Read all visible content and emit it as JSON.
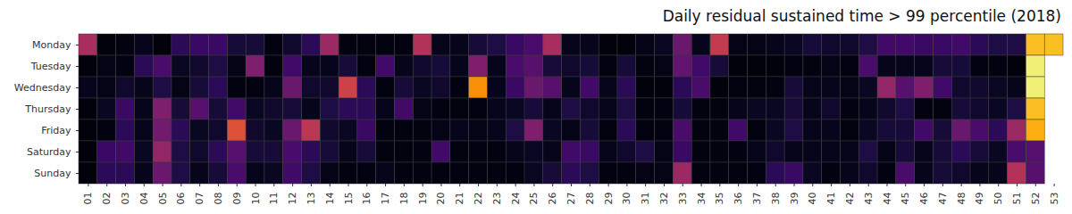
{
  "chart_data": {
    "type": "heatmap",
    "title": "Daily residual sustained time > 99 percentile (2018)",
    "x": [
      "01",
      "02",
      "03",
      "04",
      "05",
      "06",
      "07",
      "08",
      "09",
      "10",
      "11",
      "12",
      "13",
      "14",
      "15",
      "16",
      "17",
      "18",
      "19",
      "20",
      "21",
      "22",
      "23",
      "24",
      "25",
      "26",
      "27",
      "28",
      "29",
      "30",
      "31",
      "32",
      "33",
      "34",
      "35",
      "36",
      "37",
      "38",
      "39",
      "40",
      "41",
      "42",
      "43",
      "44",
      "45",
      "46",
      "47",
      "48",
      "49",
      "50",
      "51",
      "52",
      "53"
    ],
    "y": [
      "Monday",
      "Tuesday",
      "Wednesday",
      "Thursday",
      "Friday",
      "Saturday",
      "Sunday"
    ],
    "values": [
      [
        0.45,
        0.02,
        0.03,
        0.05,
        0.02,
        0.15,
        0.18,
        0.18,
        0.1,
        0.1,
        0.03,
        0.08,
        0.15,
        0.42,
        0.03,
        0.03,
        0.03,
        0.03,
        0.48,
        0.05,
        0.05,
        0.1,
        0.12,
        0.18,
        0.22,
        0.45,
        0.05,
        0.05,
        0.02,
        0.02,
        0.04,
        0.06,
        0.3,
        0.05,
        0.52,
        0.04,
        0.04,
        0.05,
        0.06,
        0.1,
        0.08,
        0.08,
        0.12,
        0.2,
        0.2,
        0.18,
        0.18,
        0.2,
        0.15,
        0.12,
        0.12,
        0.85,
        0.85
      ],
      [
        0.02,
        0.04,
        0.03,
        0.15,
        0.22,
        0.06,
        0.08,
        0.12,
        0.04,
        0.35,
        0.03,
        0.2,
        0.05,
        0.05,
        0.1,
        0.03,
        0.2,
        0.05,
        0.08,
        0.1,
        0.05,
        0.35,
        0.05,
        0.22,
        0.25,
        0.1,
        0.08,
        0.1,
        0.03,
        0.1,
        0.03,
        0.04,
        0.28,
        0.2,
        0.1,
        0.02,
        0.02,
        0.02,
        0.03,
        0.03,
        0.04,
        0.03,
        0.22,
        0.05,
        0.05,
        0.05,
        0.1,
        0.1,
        0.03,
        0.03,
        0.02,
        0.95,
        null
      ],
      [
        0.05,
        0.04,
        0.08,
        0.05,
        0.12,
        0.04,
        0.1,
        0.15,
        0.03,
        0.03,
        0.05,
        0.3,
        0.08,
        0.08,
        0.55,
        0.15,
        0.03,
        0.1,
        0.06,
        0.08,
        0.03,
        0.75,
        0.05,
        0.18,
        0.3,
        0.25,
        0.05,
        0.2,
        0.05,
        0.15,
        0.02,
        0.02,
        0.15,
        0.22,
        0.02,
        0.03,
        0.03,
        0.03,
        0.1,
        0.05,
        0.05,
        0.04,
        0.06,
        0.4,
        0.25,
        0.35,
        0.2,
        0.08,
        0.08,
        0.06,
        0.05,
        0.95,
        null
      ],
      [
        0.02,
        0.06,
        0.18,
        0.05,
        0.35,
        0.1,
        0.25,
        0.1,
        0.2,
        0.06,
        0.08,
        0.1,
        0.05,
        0.12,
        0.15,
        0.15,
        0.05,
        0.2,
        0.04,
        0.03,
        0.03,
        0.03,
        0.05,
        0.06,
        0.1,
        0.05,
        0.12,
        0.08,
        0.05,
        0.12,
        0.03,
        0.03,
        0.1,
        0.03,
        0.03,
        0.05,
        0.06,
        0.06,
        0.1,
        0.05,
        0.08,
        0.03,
        0.05,
        0.08,
        0.12,
        0.03,
        0.03,
        0.1,
        0.08,
        0.06,
        0.12,
        0.85,
        null
      ],
      [
        0.02,
        0.03,
        0.15,
        0.05,
        0.32,
        0.15,
        0.06,
        0.08,
        0.6,
        0.08,
        0.06,
        0.3,
        0.5,
        0.08,
        0.06,
        0.18,
        0.03,
        0.03,
        0.03,
        0.04,
        0.05,
        0.04,
        0.05,
        0.12,
        0.35,
        0.06,
        0.04,
        0.1,
        0.03,
        0.15,
        0.03,
        0.03,
        0.22,
        0.03,
        0.03,
        0.2,
        0.03,
        0.06,
        0.12,
        0.05,
        0.05,
        0.03,
        0.06,
        0.1,
        0.1,
        0.2,
        0.1,
        0.3,
        0.22,
        0.15,
        0.42,
        0.82,
        null
      ],
      [
        0.02,
        0.18,
        0.2,
        0.06,
        0.4,
        0.12,
        0.08,
        0.15,
        0.25,
        0.1,
        0.1,
        0.22,
        0.15,
        0.1,
        0.05,
        0.1,
        0.03,
        0.03,
        0.03,
        0.2,
        0.03,
        0.03,
        0.03,
        0.05,
        0.06,
        0.05,
        0.2,
        0.18,
        0.05,
        0.08,
        0.12,
        0.04,
        0.18,
        0.03,
        0.03,
        0.03,
        0.05,
        0.08,
        0.05,
        0.05,
        0.05,
        0.05,
        0.12,
        0.04,
        0.1,
        0.05,
        0.1,
        0.15,
        0.1,
        0.06,
        0.22,
        0.25,
        null
      ],
      [
        0.02,
        0.15,
        0.15,
        0.05,
        0.3,
        0.12,
        0.05,
        0.1,
        0.22,
        0.05,
        0.06,
        0.2,
        0.12,
        0.04,
        0.03,
        0.03,
        0.05,
        0.03,
        0.03,
        0.03,
        0.03,
        0.03,
        0.03,
        0.03,
        0.06,
        0.1,
        0.15,
        0.12,
        0.03,
        0.03,
        0.04,
        0.04,
        0.42,
        0.03,
        0.03,
        0.03,
        0.03,
        0.15,
        0.18,
        0.06,
        0.03,
        0.05,
        0.08,
        0.03,
        0.22,
        0.05,
        0.1,
        0.08,
        0.05,
        0.05,
        0.48,
        0.25,
        null
      ]
    ],
    "color_range": [
      0,
      1
    ]
  }
}
